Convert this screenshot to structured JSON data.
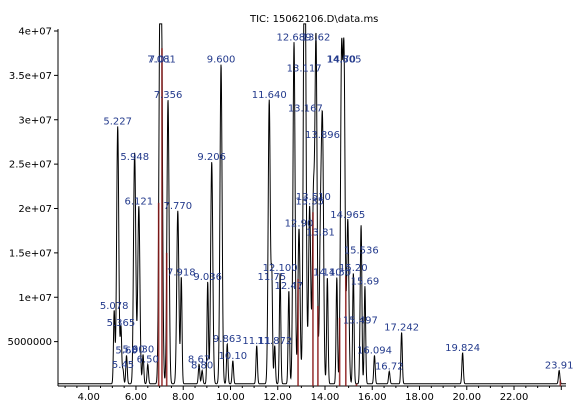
{
  "chart_data": {
    "type": "line",
    "title": "TIC: 15062106.D\\data.ms",
    "xlim": [
      2.7,
      24.2
    ],
    "ylim": [
      0,
      40000000
    ],
    "x_ticks": [
      4.0,
      6.0,
      8.0,
      10.0,
      12.0,
      14.0,
      16.0,
      18.0,
      20.0,
      22.0
    ],
    "x_tick_labels": [
      "4.00",
      "6.00",
      "8.00",
      "10.00",
      "12.00",
      "14.00",
      "16.00",
      "18.00",
      "20.00",
      "22.00"
    ],
    "y_ticks": [
      5000000,
      10000000,
      15000000,
      20000000,
      25000000,
      30000000,
      35000000,
      40000000
    ],
    "y_tick_labels": [
      "5000000",
      "1e+07",
      "1.5e+07",
      "2e+07",
      "2.5e+07",
      "3e+07",
      "3.5e+07",
      "4e+07"
    ],
    "line_color": "#000000",
    "highlight_color": "#8b1a1a",
    "label_color": "#233a8c",
    "series": [
      {
        "peaks": [
          {
            "x": 5.227,
            "y": 29000000,
            "label": "5.227"
          },
          {
            "x": 5.078,
            "y": 8200000,
            "label": "5.078"
          },
          {
            "x": 5.365,
            "y": 6300000,
            "label": "5.365"
          },
          {
            "x": 5.6,
            "y": 3200000,
            "label": "5.60"
          },
          {
            "x": 5.9,
            "y": 3300000,
            "label": "5.90"
          },
          {
            "x": 5.45,
            "y": 1600000,
            "label": "5.45"
          },
          {
            "x": 5.948,
            "y": 25000000,
            "label": "5.948"
          },
          {
            "x": 6.121,
            "y": 20000000,
            "label": "6.121"
          },
          {
            "x": 6.3,
            "y": 3300000,
            "label": "6.30"
          },
          {
            "x": 6.5,
            "y": 2200000,
            "label": "6.50"
          },
          {
            "x": 7.01,
            "y": 36000000,
            "label": "7.01"
          },
          {
            "x": 7.081,
            "y": 36000000,
            "label": "7.081"
          },
          {
            "x": 7.356,
            "y": 32000000,
            "label": "7.356"
          },
          {
            "x": 7.77,
            "y": 19500000,
            "label": "7.770"
          },
          {
            "x": 7.918,
            "y": 12000000,
            "label": "7.918"
          },
          {
            "x": 8.67,
            "y": 2200000,
            "label": "8.67"
          },
          {
            "x": 8.8,
            "y": 1500000,
            "label": "8.80"
          },
          {
            "x": 9.036,
            "y": 11500000,
            "label": "9.036"
          },
          {
            "x": 9.206,
            "y": 25000000,
            "label": "9.206"
          },
          {
            "x": 9.6,
            "y": 36000000,
            "label": "9.600"
          },
          {
            "x": 9.863,
            "y": 4500000,
            "label": "9.863"
          },
          {
            "x": 10.1,
            "y": 2600000,
            "label": "10.10"
          },
          {
            "x": 11.11,
            "y": 4300000,
            "label": "11.11"
          },
          {
            "x": 11.64,
            "y": 32000000,
            "label": "11.640"
          },
          {
            "x": 11.872,
            "y": 4300000,
            "label": "11.872"
          },
          {
            "x": 11.75,
            "y": 11500000,
            "label": "11.75"
          },
          {
            "x": 12.1,
            "y": 12500000,
            "label": "12.100"
          },
          {
            "x": 12.47,
            "y": 10500000,
            "label": "12.47"
          },
          {
            "x": 12.689,
            "y": 38500000,
            "label": "12.689"
          },
          {
            "x": 12.9,
            "y": 17500000,
            "label": "12.90"
          },
          {
            "x": 13.117,
            "y": 35000000,
            "label": "13.117"
          },
          {
            "x": 13.167,
            "y": 30500000,
            "label": "13.167"
          },
          {
            "x": 13.35,
            "y": 20000000,
            "label": "13.35"
          },
          {
            "x": 13.51,
            "y": 20500000,
            "label": "13.510"
          },
          {
            "x": 13.62,
            "y": 38500000,
            "label": "13.62"
          },
          {
            "x": 13.81,
            "y": 16500000,
            "label": "13.81"
          },
          {
            "x": 13.896,
            "y": 27500000,
            "label": "13.896"
          },
          {
            "x": 14.1,
            "y": 12000000,
            "label": "14.10"
          },
          {
            "x": 14.5,
            "y": 12000000,
            "label": "14.50"
          },
          {
            "x": 14.7,
            "y": 36000000,
            "label": "14.70"
          },
          {
            "x": 14.805,
            "y": 36000000,
            "label": "14.805"
          },
          {
            "x": 14.965,
            "y": 18500000,
            "label": "14.965"
          },
          {
            "x": 15.2,
            "y": 12500000,
            "label": "15.20"
          },
          {
            "x": 15.536,
            "y": 14500000,
            "label": "15.536"
          },
          {
            "x": 15.497,
            "y": 6600000,
            "label": "15.497"
          },
          {
            "x": 15.69,
            "y": 11000000,
            "label": "15.69"
          },
          {
            "x": 16.094,
            "y": 3200000,
            "label": "16.094"
          },
          {
            "x": 16.72,
            "y": 1400000,
            "label": "16.72"
          },
          {
            "x": 17.242,
            "y": 5800000,
            "label": "17.242"
          },
          {
            "x": 19.824,
            "y": 3500000,
            "label": "19.824"
          },
          {
            "x": 23.91,
            "y": 1500000,
            "label": "23.91"
          }
        ]
      }
    ]
  }
}
